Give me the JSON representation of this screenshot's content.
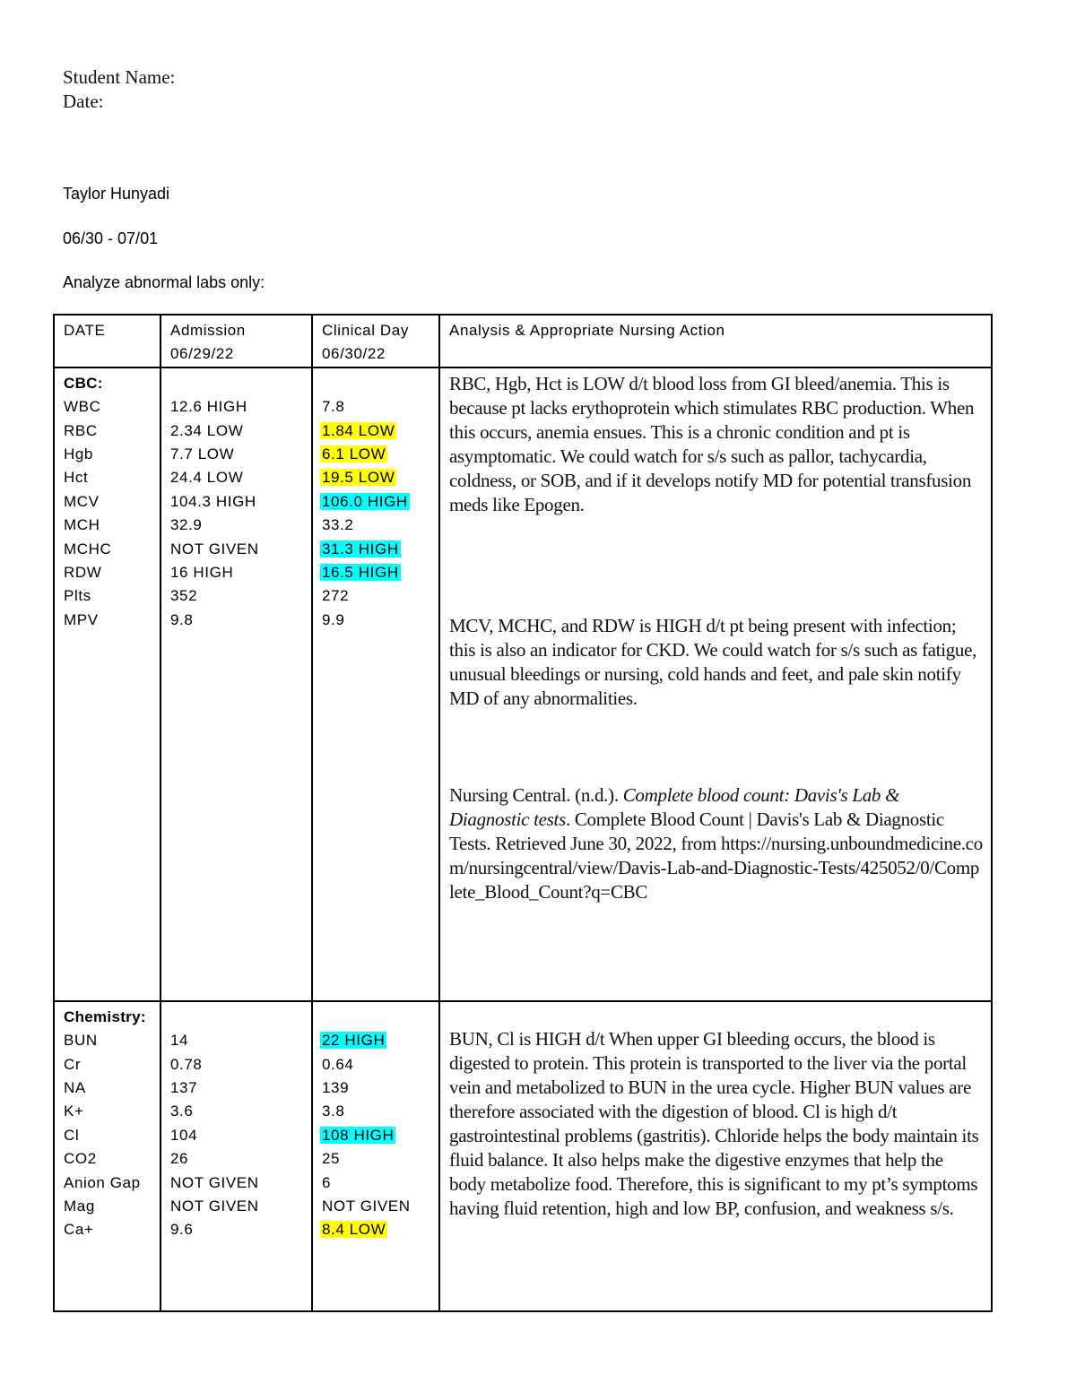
{
  "header": {
    "student_name_label": "Student Name:",
    "date_label": "Date:",
    "student_name": "Taylor Hunyadi",
    "date_range": "06/30 - 07/01",
    "instruction": "Analyze abnormal labs only:"
  },
  "colors": {
    "low_highlight": "#ffff00",
    "high_highlight": "#00ffff"
  },
  "table": {
    "headers": {
      "date": "DATE",
      "admission_label": "Admission",
      "admission_date": "06/29/22",
      "clinical_label": "Clinical Day",
      "clinical_date": "06/30/22",
      "analysis": "Analysis & Appropriate Nursing Action"
    },
    "cbc": {
      "title": "CBC:",
      "rows": [
        {
          "test": "WBC",
          "admission": "12.6 HIGH",
          "clinical": "7.8",
          "flag": ""
        },
        {
          "test": "RBC",
          "admission": "2.34 LOW",
          "clinical": "1.84 LOW",
          "flag": "low"
        },
        {
          "test": "Hgb",
          "admission": "7.7 LOW",
          "clinical": "6.1 LOW",
          "flag": "low"
        },
        {
          "test": "Hct",
          "admission": "24.4 LOW",
          "clinical": "19.5 LOW",
          "flag": "low"
        },
        {
          "test": "MCV",
          "admission": "104.3 HIGH",
          "clinical": "106.0 HIGH",
          "flag": "high"
        },
        {
          "test": "MCH",
          "admission": "32.9",
          "clinical": "33.2",
          "flag": ""
        },
        {
          "test": "MCHC",
          "admission": "NOT GIVEN",
          "clinical": "31.3 HIGH",
          "flag": "high"
        },
        {
          "test": "RDW",
          "admission": "16 HIGH",
          "clinical": "16.5 HIGH",
          "flag": "high"
        },
        {
          "test": "Plts",
          "admission": "352",
          "clinical": "272",
          "flag": ""
        },
        {
          "test": "MPV",
          "admission": "9.8",
          "clinical": "9.9",
          "flag": ""
        }
      ],
      "analysis": [
        "RBC, Hgb, Hct is LOW d/t blood loss from GI bleed/anemia. This is because pt lacks erythoprotein which stimulates RBC production. When this occurs, anemia ensues. This is a chronic condition and pt is asymptomatic. We could watch for s/s such as pallor, tachycardia, coldness, or SOB, and if it develops notify MD for potential transfusion meds like Epogen.",
        "MCV, MCHC, and RDW is HIGH d/t pt being present with infection; this is also an indicator for CKD. We could watch for s/s such as fatigue, unusual bleedings or nursing, cold hands and feet, and pale skin notify MD of any abnormalities."
      ],
      "citation": {
        "author": "Nursing Central. (n.d.). ",
        "title": "Complete blood count: Davis's Lab & Diagnostic tests",
        "rest": ". Complete Blood Count | Davis's Lab & Diagnostic Tests. Retrieved June 30, 2022, from ",
        "url": "https://nursing.unboundmedicine.com/nursingcentral/view/Davis-Lab-and-Diagnostic-Tests/425052/0/Complete_Blood_Count?q=CBC"
      }
    },
    "chemistry": {
      "title": "Chemistry:",
      "rows": [
        {
          "test": "BUN",
          "admission": "14",
          "clinical": "22 HIGH",
          "flag": "high"
        },
        {
          "test": "Cr",
          "admission": "0.78",
          "clinical": "0.64",
          "flag": ""
        },
        {
          "test": "NA",
          "admission": "137",
          "clinical": "139",
          "flag": ""
        },
        {
          "test": "K+",
          "admission": "3.6",
          "clinical": "3.8",
          "flag": ""
        },
        {
          "test": "Cl",
          "admission": "104",
          "clinical": "108 HIGH",
          "flag": "high"
        },
        {
          "test": "CO2",
          "admission": "26",
          "clinical": "25",
          "flag": ""
        },
        {
          "test": "Anion Gap",
          "admission": "NOT GIVEN",
          "clinical": "6",
          "flag": ""
        },
        {
          "test": "Mag",
          "admission": "NOT GIVEN",
          "clinical": "NOT GIVEN",
          "flag": ""
        },
        {
          "test": "Ca+",
          "admission": "9.6",
          "clinical": "8.4 LOW",
          "flag": "low"
        }
      ],
      "analysis": "BUN, Cl is HIGH d/t When upper GI bleeding occurs, the blood is digested to protein. This protein is transported to the liver via the portal vein and metabolized to BUN in the urea cycle. Higher BUN values are therefore associated with the digestion of blood. Cl is high d/t gastrointestinal problems (gastritis). Chloride helps the body maintain its fluid balance. It also helps make the digestive enzymes that help the body metabolize food. Therefore, this is significant to my pt’s symptoms having fluid retention, high and low BP, confusion, and weakness s/s."
    }
  }
}
